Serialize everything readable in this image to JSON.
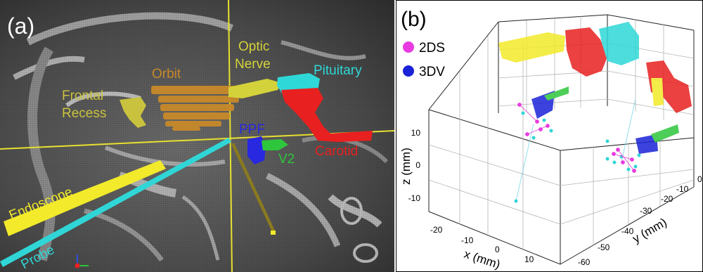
{
  "panel_a": {
    "label": "(a)",
    "structures": {
      "optic_nerve": [
        "Optic",
        "Nerve"
      ],
      "pituitary": "Pituitary",
      "orbit": "Orbit",
      "frontal_recess": [
        "Frontal",
        "Recess"
      ],
      "ppf": "PPF",
      "v2": "V2",
      "carotid": "Carotid",
      "endoscope": "Endoscope",
      "probe": "Probe"
    },
    "colors": {
      "optic_nerve": "#d4d23a",
      "pituitary": "#2fd8d8",
      "orbit": "#c8892a",
      "frontal_recess": "#c9c23e",
      "ppf": "#2828e0",
      "v2": "#2ec63c",
      "carotid": "#e82020",
      "endoscope": "#f2ea2a",
      "probe": "#30d6d6",
      "crosshair": "#e8e030"
    }
  },
  "panel_b": {
    "label": "(b)",
    "legend": [
      {
        "name": "2DS",
        "color": "#e83ae0"
      },
      {
        "name": "3DV",
        "color": "#1a22d8"
      }
    ],
    "axes": {
      "x": {
        "title": "x (mm)",
        "ticks": [
          "-20",
          "-10",
          "0",
          "10"
        ]
      },
      "y": {
        "title": "y (mm)",
        "ticks": [
          "0",
          "-10",
          "-20",
          "-30",
          "-40",
          "-50",
          "-60"
        ]
      },
      "z": {
        "title": "z (mm)",
        "ticks": [
          "10",
          "0",
          "-10"
        ]
      }
    }
  }
}
